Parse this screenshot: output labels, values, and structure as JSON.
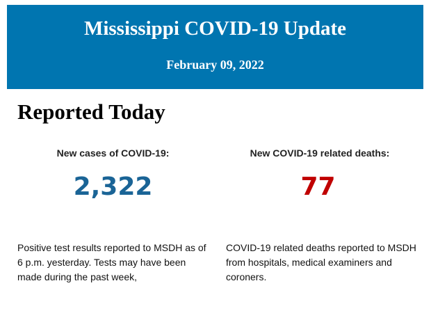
{
  "header": {
    "title": "Mississippi COVID-19 Update",
    "date": "February 09, 2022",
    "background_color": "#0075b0"
  },
  "section": {
    "title": "Reported Today"
  },
  "stats": [
    {
      "label": "New cases of COVID-19:",
      "value": "2,322",
      "color": "#1a6496",
      "description": "Positive test results reported to MSDH as of 6 p.m. yesterday. Tests may have been made during the past week,"
    },
    {
      "label": "New COVID-19 related deaths:",
      "value": "77",
      "color": "#c00000",
      "description": "COVID-19 related deaths reported to MSDH from hospitals, medical examiners and coroners."
    }
  ]
}
